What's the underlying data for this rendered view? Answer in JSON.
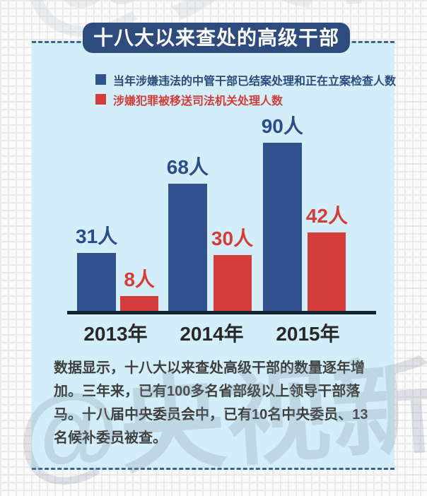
{
  "title": "十八大以来查处的高级干部",
  "watermark": {
    "text": "@央视新闻"
  },
  "chart_data": {
    "type": "bar",
    "title": "十八大以来查处的高级干部",
    "categories": [
      "2013年",
      "2014年",
      "2015年"
    ],
    "series": [
      {
        "name": "当年涉嫌违法的中管干部已结案处理和正在立案检查人数",
        "color": "#31518f",
        "values": [
          31,
          68,
          90
        ],
        "labels": [
          "31人",
          "68人",
          "90人"
        ]
      },
      {
        "name": "涉嫌犯罪被移送司法机关处理人数",
        "color": "#d23c39",
        "values": [
          8,
          30,
          42
        ],
        "labels": [
          "8人",
          "30人",
          "42人"
        ]
      }
    ],
    "unit": "人",
    "ylim": [
      0,
      95
    ],
    "grid": false,
    "legend_position": "top-left"
  },
  "description": "数据显示，十八大以来查处高级干部的数量逐年增加。三年来，已有100多名省部级以上领导干部落马。十八届中央委员会中，已有10名中央委员、13名候补委员被查。",
  "colors": {
    "panel_bg": "#d3eef8",
    "title_bg": "#2e4b7e",
    "title_text": "#ffffff",
    "bar_blue": "#31518f",
    "bar_red": "#d23c39",
    "value_label_blue": "#2b4c8c",
    "value_label_red": "#d43c3a",
    "axis": "#16222f",
    "x_label": "#282828",
    "description_text": "#3e3e3e",
    "dashed_border": "#3a639c"
  }
}
